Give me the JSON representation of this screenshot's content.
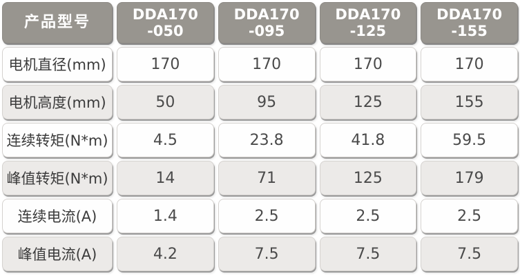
{
  "table": {
    "corner_label": "产品型号",
    "model_columns": [
      "DDA170\n-050",
      "DDA170\n-095",
      "DDA170\n-125",
      "DDA170\n-155"
    ],
    "rows": [
      {
        "label": "电机直径(mm)",
        "values": [
          "170",
          "170",
          "170",
          "170"
        ]
      },
      {
        "label": "电机高度(mm)",
        "values": [
          "50",
          "95",
          "125",
          "155"
        ]
      },
      {
        "label": "连续转矩(N*m)",
        "values": [
          "4.5",
          "23.8",
          "41.8",
          "59.5"
        ]
      },
      {
        "label": "峰值转矩(N*m)",
        "values": [
          "14",
          "71",
          "125",
          "179"
        ]
      },
      {
        "label": "连续电流(A)",
        "values": [
          "1.4",
          "2.5",
          "2.5",
          "2.5"
        ]
      },
      {
        "label": "峰值电流(A)",
        "values": [
          "4.2",
          "7.5",
          "7.5",
          "7.5"
        ]
      }
    ],
    "colors": {
      "header_bg": "#98958f",
      "header_text": "#ffffff",
      "row_white_bg": "#fefefe",
      "row_gray_bg": "#eceae8",
      "body_text": "#3b3b3b"
    }
  }
}
